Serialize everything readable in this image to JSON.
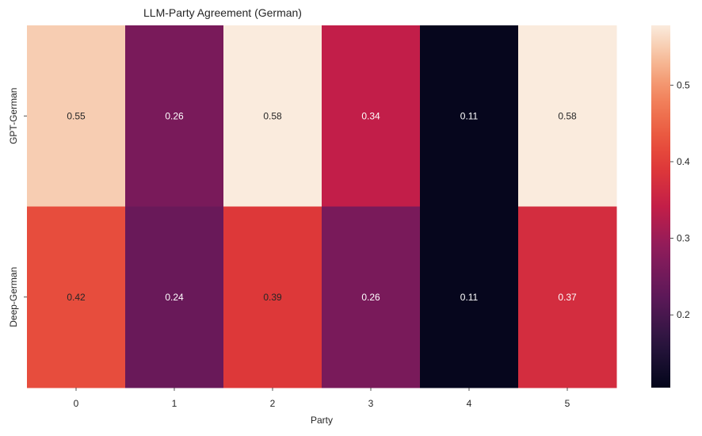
{
  "chart_data": {
    "type": "heatmap",
    "title": "LLM-Party Agreement (German)",
    "xlabel": "Party",
    "ylabel": "",
    "x_categories": [
      "0",
      "1",
      "2",
      "3",
      "4",
      "5"
    ],
    "y_categories": [
      "GPT-German",
      "Deep-German"
    ],
    "values": [
      [
        0.55,
        0.26,
        0.58,
        0.34,
        0.11,
        0.58
      ],
      [
        0.42,
        0.24,
        0.39,
        0.26,
        0.11,
        0.37
      ]
    ],
    "annotations": [
      [
        "0.55",
        "0.26",
        "0.58",
        "0.34",
        "0.11",
        "0.58"
      ],
      [
        "0.42",
        "0.24",
        "0.39",
        "0.26",
        "0.11",
        "0.37"
      ]
    ],
    "colormap": "rocket",
    "colorbar": {
      "range": [
        0.105,
        0.578
      ],
      "ticks": [
        0.2,
        0.3,
        0.4,
        0.5
      ],
      "tick_labels": [
        "0.2",
        "0.3",
        "0.4",
        "0.5"
      ]
    },
    "grid": false,
    "text_light_color": "#ffffff",
    "text_dark_color": "#262626",
    "axis_text_color": "#262626"
  }
}
